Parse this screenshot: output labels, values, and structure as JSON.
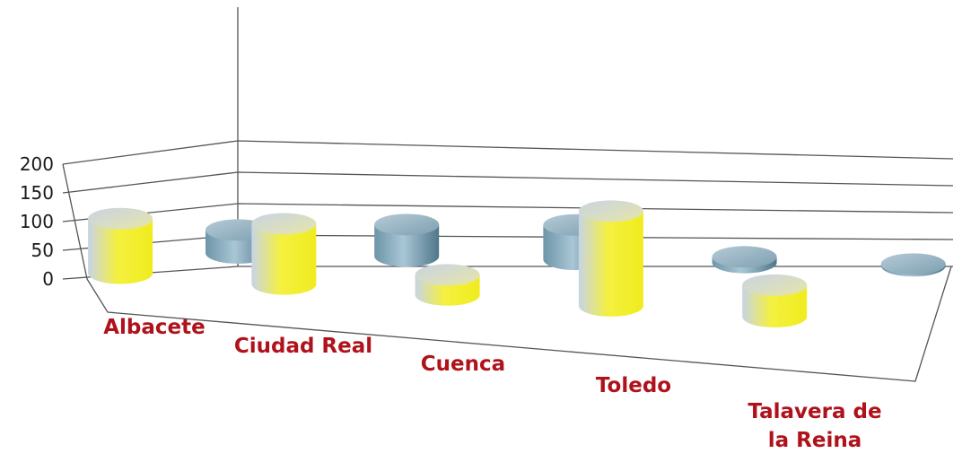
{
  "colors": {
    "series_a_light": "#aebfd6",
    "series_a_main": "#f4f040",
    "series_b_light": "#9fc0d0",
    "series_b_main": "#5a8296",
    "category_text": "#b0121b",
    "axis_text": "#1a1a1a",
    "grid": "#555555"
  },
  "chart_data": {
    "type": "bar",
    "style": "3d-cylinder",
    "title": "",
    "xlabel": "",
    "ylabel": "",
    "ylim": [
      0,
      200
    ],
    "yticks": [
      "0",
      "50",
      "100",
      "150",
      "200"
    ],
    "grid": true,
    "legend": "none",
    "categories": [
      "Albacete",
      "Ciudad Real",
      "Cuenca",
      "Toledo",
      "Talavera de la Reina"
    ],
    "category_lines": [
      [
        "Albacete"
      ],
      [
        "Ciudad Real"
      ],
      [
        "Cuenca"
      ],
      [
        "Toledo"
      ],
      [
        "Talavera de",
        "la Reina"
      ]
    ],
    "series": [
      {
        "values": [
          95,
          105,
          35,
          165,
          55
        ]
      },
      {
        "values": [
          40,
          55,
          60,
          10,
          3
        ]
      }
    ]
  }
}
